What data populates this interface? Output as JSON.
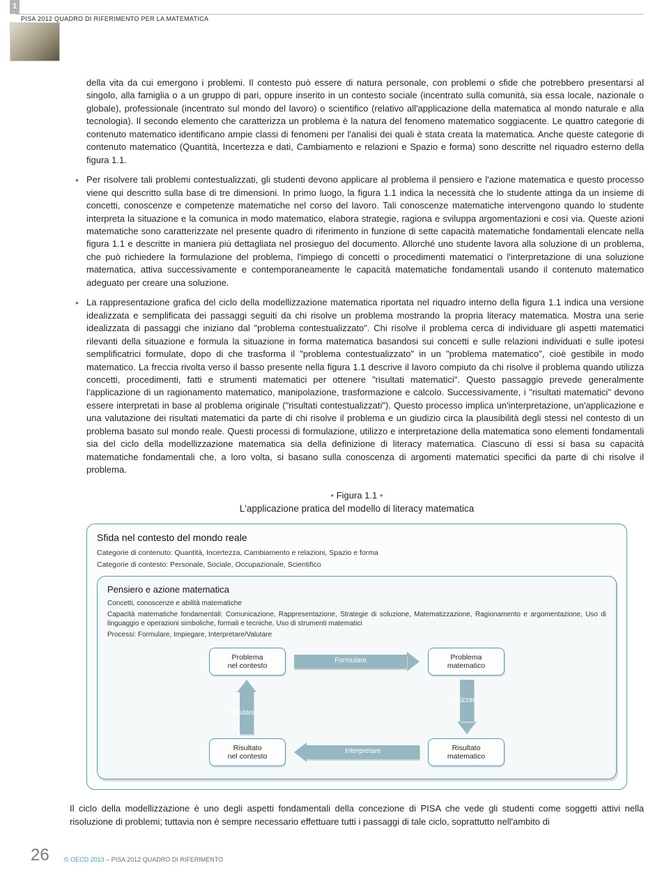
{
  "tab": "1",
  "header": "PISA 2012 QUADRO DI RIFERIMENTO PER LA MATEMATICA",
  "body": {
    "lead": "della vita da cui emergono i problemi. Il contesto può essere di natura personale, con problemi o sfide che potrebbero presentarsi al singolo, alla famiglia o a un gruppo di pari, oppure inserito in un contesto sociale (incentrato sulla comunità, sia essa locale, nazionale o globale), professionale (incentrato sul mondo del lavoro) o scientifico (relativo all'applicazione della matematica al mondo naturale e alla tecnologia). Il secondo elemento che caratterizza un problema è la natura del fenomeno matematico soggiacente. Le quattro categorie di contenuto matematico identificano ampie classi di fenomeni per l'analisi dei quali è stata creata la matematica. Anche queste categorie di contenuto matematico (Quantità, Incertezza e dati, Cambiamento e relazioni e Spazio e forma) sono descritte nel riquadro esterno della figura 1.1.",
    "b1": "Per risolvere tali problemi contestualizzati, gli studenti devono applicare al problema il pensiero e l'azione matematica e questo processo viene qui descritto sulla base di tre dimensioni. In primo luogo, la figura 1.1 indica la necessità che lo studente attinga da un insieme di concetti, conoscenze e competenze matematiche nel corso del lavoro. Tali conoscenze matematiche intervengono quando lo studente interpreta la situazione e la comunica in modo matematico, elabora strategie, ragiona e sviluppa argomentazioni e così via. Queste azioni matematiche sono caratterizzate nel presente quadro di riferimento in funzione di sette capacità matematiche fondamentali elencate nella figura 1.1 e descritte in maniera più dettagliata nel prosieguo del documento. Allorché uno studente lavora alla soluzione di un problema, che può richiedere la formulazione del problema, l'impiego di concetti o procedimenti matematici o l'interpretazione di una soluzione matematica, attiva successivamente e contemporaneamente le capacità matematiche fondamentali usando il contenuto matematico adeguato per creare una soluzione.",
    "b2": "La rappresentazione grafica del ciclo della modellizzazione matematica riportata nel riquadro interno della figura 1.1 indica una versione idealizzata e semplificata dei passaggi seguiti da chi risolve un problema mostrando la propria literacy matematica. Mostra una serie idealizzata di passaggi che iniziano dal \"problema contestualizzato\". Chi risolve il problema cerca di individuare gli aspetti matematici rilevanti della situazione e formula la situazione in forma matematica basandosi sui concetti e sulle relazioni individuati e sulle ipotesi semplificatrici formulate, dopo di che trasforma il \"problema contestualizzato\" in un \"problema matematico\", cioè gestibile in modo matematico. La freccia rivolta verso il basso presente nella figura 1.1 descrive il lavoro compiuto da chi risolve il problema quando utilizza concetti, procedimenti, fatti e strumenti matematici per ottenere \"risultati matematici\". Questo passaggio prevede generalmente l'applicazione di un ragionamento matematico, manipolazione, trasformazione e calcolo. Successivamente, i \"risultati matematici\" devono essere interpretati in base al problema originale (\"risultati contestualizzati\"). Questo processo implica un'interpretazione, un'applicazione e una valutazione dei risultati matematici da parte di chi risolve il problema e un giudizio circa la plausibilità degli stessi nel contesto di un problema basato sul mondo reale. Questi processi di formulazione, utilizzo e interpretazione della matematica sono elementi fondamentali sia del ciclo della modellizzazione matematica sia della definizione di literacy matematica. Ciascuno di essi si basa su capacità matematiche fondamentali che, a loro volta, si basano sulla conoscenza di argomenti matematici specifici da parte di chi risolve il problema."
  },
  "figure": {
    "label_prefix": "• ",
    "label": "Figura 1.1",
    "label_suffix": " •",
    "caption": "L'applicazione pratica del modello di literacy matematica",
    "outer": {
      "title": "Sfida nel contesto del mondo reale",
      "line1": "Categorie di contenuto: Quantità, Incertezza, Cambiamento e relazioni, Spazio e forma",
      "line2": "Categorie di contesto: Personale, Sociale, Occupazionale, Scientifico"
    },
    "inner": {
      "title": "Pensiero e azione matematica",
      "line1": "Concetti, conoscenze e abilità matematiche",
      "line2": "Capacità matematiche fondamentali: Comunicazione, Rappresentazione, Strategie di soluzione, Matematizzazione, Ragionamento e argomentazione, Uso di linguaggio e operazioni simboliche, formali e tecniche, Uso di strumenti matematici",
      "line3": "Processi: Formulare, Impiegare, Interpretare/Valutare"
    },
    "nodes": {
      "tl1": "Problema",
      "tl2": "nel contesto",
      "tr1": "Problema",
      "tr2": "matematico",
      "bl1": "Risultato",
      "bl2": "nel contesto",
      "br1": "Risultato",
      "br2": "matematico"
    },
    "arrows": {
      "top": "Formulare",
      "right": "Utilizzare",
      "bottom": "Interpretare",
      "left": "Valutare"
    }
  },
  "closing": "Il ciclo della modellizzazione è uno degli aspetti fondamentali della concezione di PISA che vede gli studenti come soggetti attivi nella risoluzione di problemi; tuttavia non è sempre necessario effettuare tutti i passaggi di tale ciclo, soprattutto nell'ambito di",
  "footer": {
    "page": "26",
    "copyright": "© OECD 2013",
    "title": " – PISA 2012 QUADRO DI RIFERIMENTO"
  }
}
